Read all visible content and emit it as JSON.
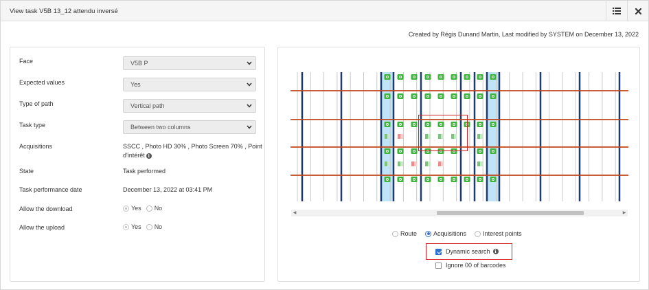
{
  "header": {
    "title": "View task V5B 13_12 attendu inversé"
  },
  "meta": {
    "text": "Created by Régis Dunand Martin, Last modified by SYSTEM on December 13, 2022"
  },
  "form": {
    "face": {
      "label": "Face",
      "value": "V5B P"
    },
    "expected_values": {
      "label": "Expected values",
      "value": "Yes"
    },
    "type_of_path": {
      "label": "Type of path",
      "value": "Vertical path"
    },
    "task_type": {
      "label": "Task type",
      "value": "Between two columns"
    },
    "acquisitions": {
      "label": "Acquisitions",
      "line1": "SSCC , Photo HD 30% , Photo Screen 70% , Point",
      "line2": "d'intérêt"
    },
    "state": {
      "label": "State",
      "value": "Task performed"
    },
    "task_date": {
      "label": "Task performance date",
      "value": "December 13, 2022 at 03:41 PM"
    },
    "allow_download": {
      "label": "Allow the download",
      "yes": "Yes",
      "no": "No",
      "selected": "Yes"
    },
    "allow_upload": {
      "label": "Allow the upload",
      "yes": "Yes",
      "no": "No",
      "selected": "Yes"
    }
  },
  "view": {
    "options": [
      {
        "label": "Route",
        "selected": false
      },
      {
        "label": "Acquisitions",
        "selected": true
      },
      {
        "label": "Interest points",
        "selected": false
      }
    ],
    "dynamic_search": {
      "label": "Dynamic search",
      "checked": true
    },
    "ignore_00": {
      "label": "Ignore 00 of barcodes",
      "checked": false
    }
  },
  "icons": {
    "list": "list-icon",
    "close": "close-icon",
    "camera": "camera-icon",
    "chevron": "chevron-down-icon",
    "info": "info-icon"
  },
  "colors": {
    "accent": "#2d6fd3",
    "beam": "#c0451a",
    "upright": "#1f3a6d",
    "camera": "#3db53d",
    "highlight_column": "#bfe3f7",
    "annotation": "#d62020"
  },
  "plan": {
    "camera_rows": [
      [
        "1",
        "1",
        "1",
        "1",
        "1",
        "1",
        "1",
        "1",
        "1"
      ],
      [
        "1",
        "1",
        "1",
        "1",
        "1",
        "1",
        "1",
        "1",
        "1"
      ],
      [
        "1",
        "1",
        "1",
        "1",
        "1",
        "1",
        "1",
        "1",
        "1"
      ],
      [
        "1",
        "1",
        "1",
        "1",
        "1",
        "1",
        "0",
        "1",
        "1"
      ],
      [
        "1",
        "1",
        "1",
        "1",
        "1",
        "1",
        "1",
        "1",
        "1"
      ]
    ],
    "marker_rows": [
      [],
      [],
      [
        "g",
        "r",
        "",
        "g",
        "g",
        "g",
        "",
        "g"
      ],
      [
        "g",
        "g",
        "r",
        "g",
        "r",
        "",
        "",
        "g"
      ],
      []
    ]
  }
}
